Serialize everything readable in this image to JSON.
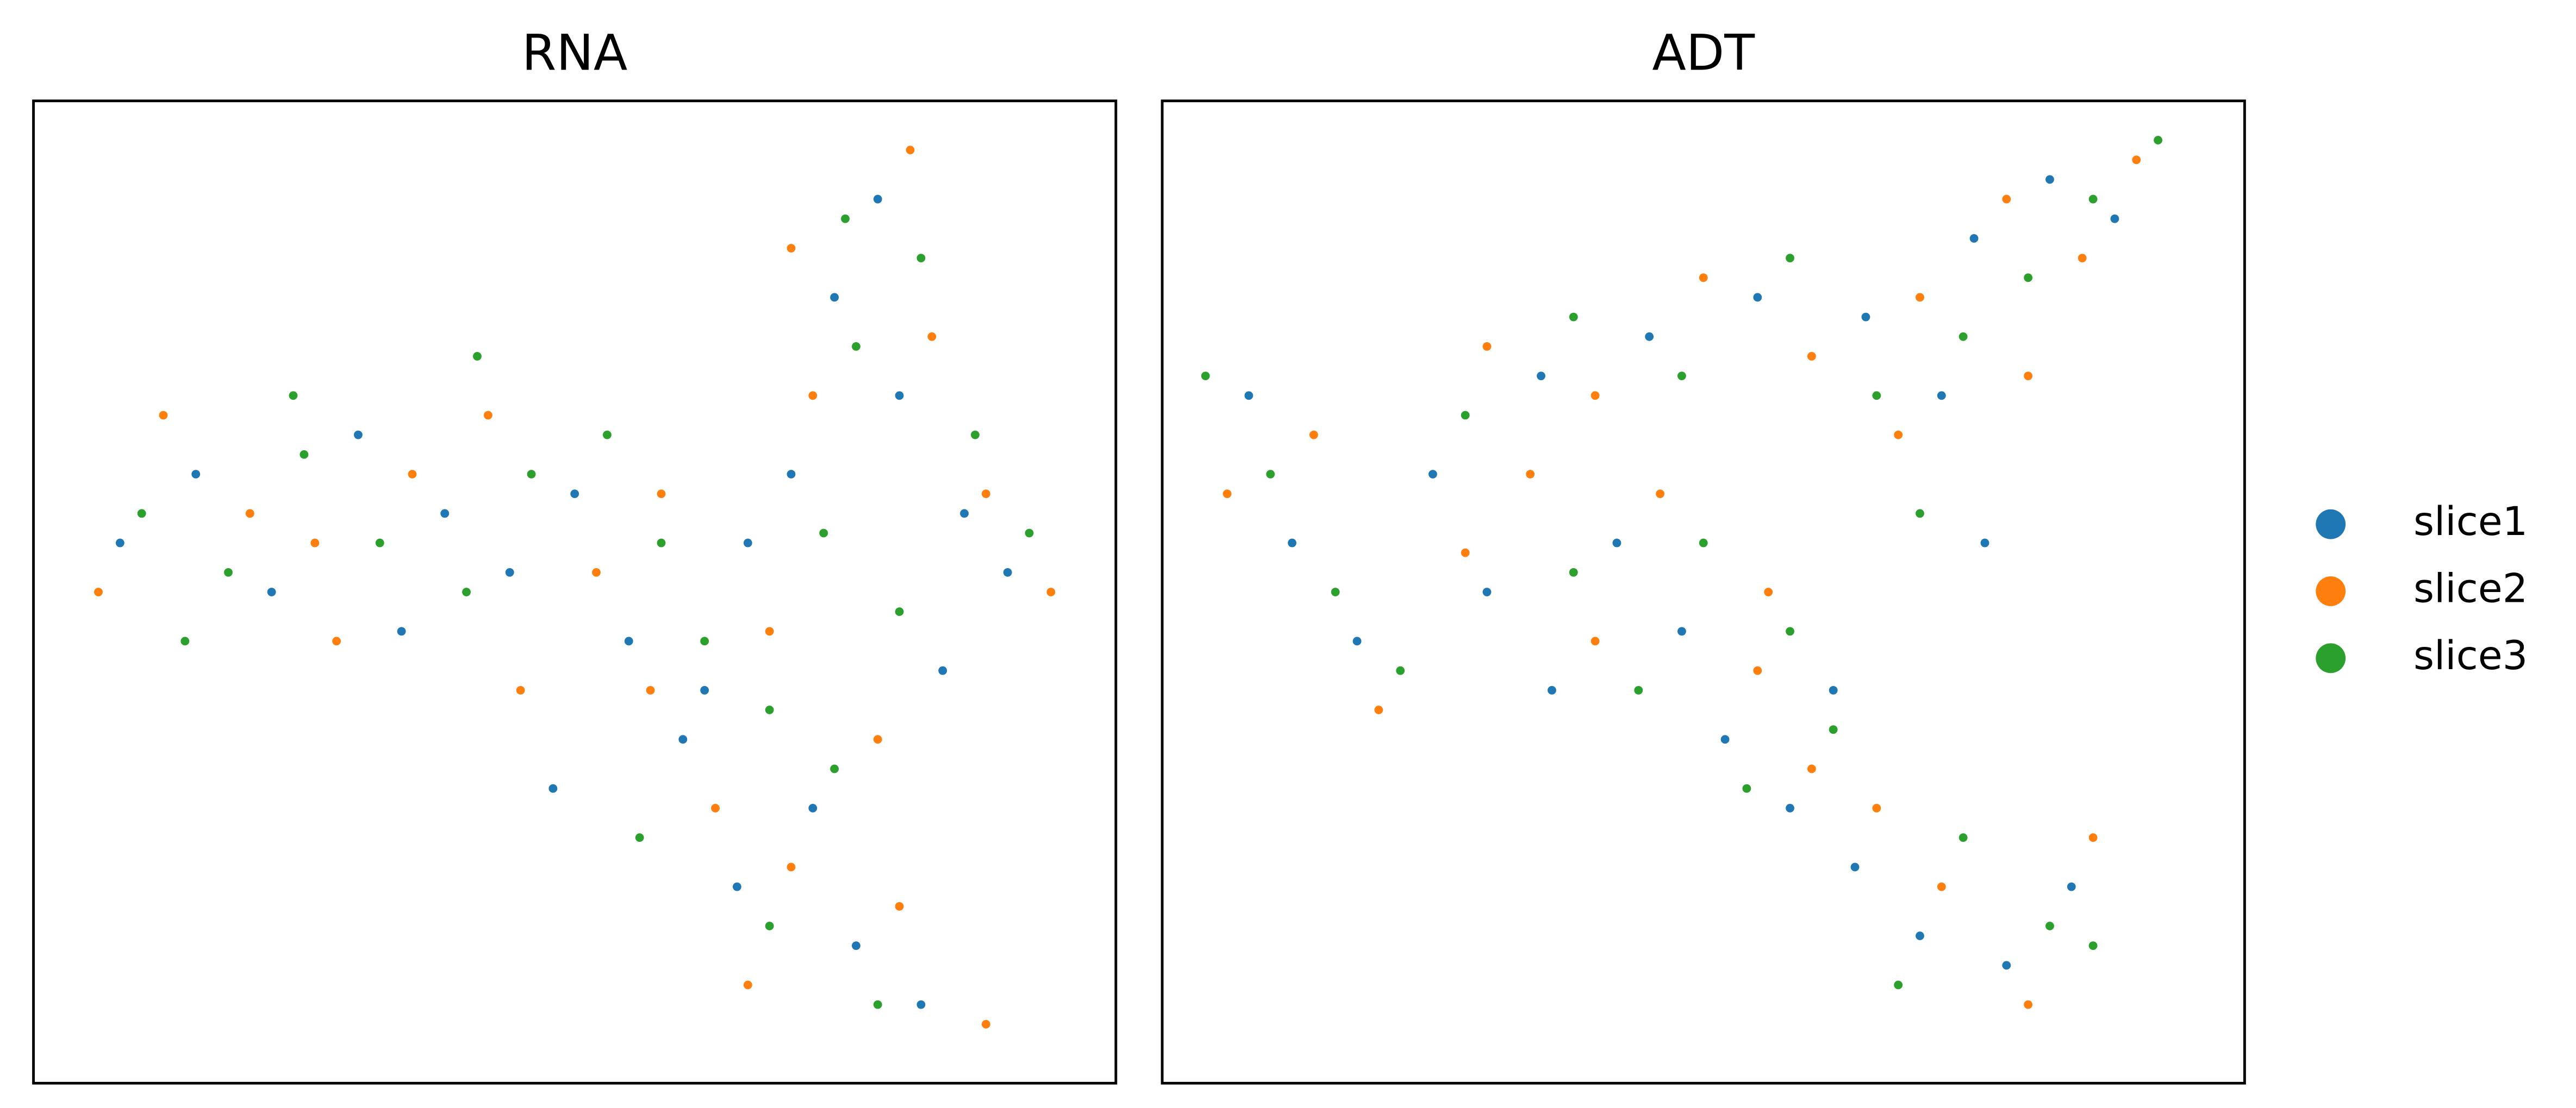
{
  "chart_data": [
    {
      "type": "scatter",
      "title": "RNA",
      "xlim": [
        0,
        100
      ],
      "ylim": [
        0,
        100
      ],
      "legend": "right",
      "series": [
        {
          "name": "slice1",
          "color": "#1f77b4",
          "x": [
            8,
            15,
            22,
            30,
            38,
            44,
            50,
            55,
            60,
            66,
            70,
            74,
            78,
            80,
            86,
            90,
            84,
            72,
            65,
            76,
            82,
            62,
            34,
            48
          ],
          "values": [
            55,
            62,
            50,
            66,
            58,
            52,
            60,
            45,
            35,
            55,
            62,
            80,
            90,
            70,
            58,
            52,
            42,
            28,
            20,
            14,
            8,
            40,
            46,
            30
          ]
        },
        {
          "name": "slice2",
          "color": "#ff7f0e",
          "x": [
            6,
            12,
            20,
            28,
            35,
            42,
            52,
            57,
            63,
            68,
            72,
            70,
            81,
            83,
            88,
            94,
            78,
            70,
            80,
            88,
            58,
            26,
            45,
            66
          ],
          "values": [
            50,
            68,
            58,
            45,
            62,
            68,
            52,
            40,
            28,
            46,
            70,
            85,
            95,
            76,
            60,
            50,
            35,
            22,
            18,
            6,
            60,
            55,
            40,
            10
          ]
        },
        {
          "name": "slice3",
          "color": "#2ca02c",
          "x": [
            10,
            18,
            25,
            32,
            40,
            46,
            53,
            58,
            62,
            68,
            73,
            76,
            75,
            82,
            87,
            92,
            80,
            74,
            68,
            78,
            56,
            24,
            14,
            41
          ],
          "values": [
            58,
            52,
            64,
            55,
            50,
            62,
            66,
            55,
            45,
            38,
            56,
            75,
            88,
            84,
            66,
            56,
            48,
            32,
            16,
            8,
            25,
            70,
            45,
            74
          ]
        }
      ]
    },
    {
      "type": "scatter",
      "title": "ADT",
      "xlim": [
        0,
        100
      ],
      "ylim": [
        0,
        100
      ],
      "series": [
        {
          "color": "#1f77b4",
          "x": [
            8,
            12,
            18,
            25,
            30,
            36,
            42,
            48,
            52,
            58,
            64,
            70,
            78,
            84,
            62,
            35,
            45,
            55,
            65,
            75,
            82,
            88,
            72,
            76
          ],
          "values": [
            70,
            55,
            45,
            62,
            50,
            40,
            55,
            46,
            35,
            28,
            22,
            15,
            12,
            20,
            40,
            72,
            76,
            80,
            78,
            86,
            92,
            88,
            70,
            55
          ]
        },
        {
          "color": "#ff7f0e",
          "x": [
            6,
            14,
            20,
            28,
            34,
            40,
            46,
            55,
            60,
            66,
            72,
            80,
            86,
            56,
            30,
            40,
            50,
            60,
            70,
            78,
            85,
            90,
            68,
            80
          ],
          "values": [
            60,
            66,
            38,
            54,
            62,
            45,
            60,
            42,
            32,
            28,
            20,
            8,
            25,
            50,
            75,
            70,
            82,
            74,
            80,
            90,
            84,
            94,
            66,
            72
          ]
        },
        {
          "color": "#2ca02c",
          "x": [
            4,
            10,
            16,
            22,
            28,
            38,
            44,
            50,
            54,
            62,
            68,
            74,
            82,
            86,
            58,
            38,
            48,
            58,
            66,
            74,
            80,
            86,
            92,
            70
          ],
          "values": [
            72,
            62,
            50,
            42,
            68,
            52,
            40,
            55,
            30,
            36,
            10,
            25,
            16,
            14,
            46,
            78,
            72,
            84,
            70,
            76,
            82,
            90,
            96,
            58
          ]
        }
      ]
    }
  ]
}
